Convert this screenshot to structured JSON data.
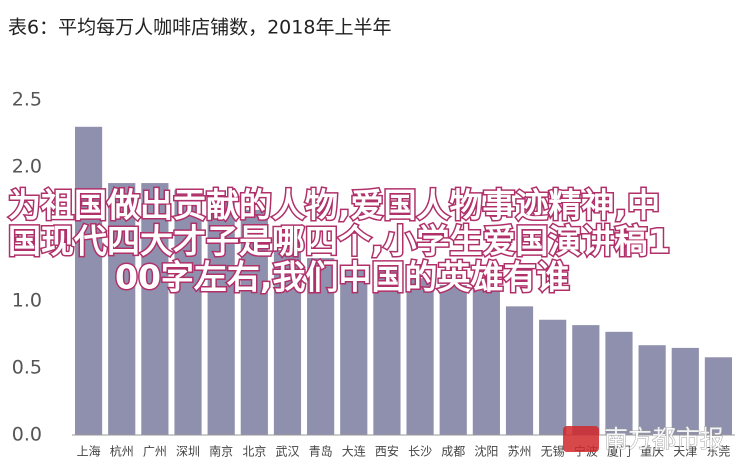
{
  "chart_data": {
    "type": "bar",
    "title": "表6：平均每万人咖啡店铺数，2018年上半年",
    "categories": [
      "上海",
      "杭州",
      "广州",
      "深圳",
      "南京",
      "北京",
      "武汉",
      "青岛",
      "大连",
      "西安",
      "长沙",
      "成都",
      "沈阳",
      "苏州",
      "无锡",
      "宁波",
      "厦门",
      "重庆",
      "天津",
      "东莞"
    ],
    "values": [
      2.3,
      1.88,
      1.88,
      1.83,
      1.75,
      1.68,
      1.38,
      1.32,
      1.27,
      1.22,
      1.17,
      1.12,
      1.1,
      0.96,
      0.86,
      0.82,
      0.77,
      0.67,
      0.65,
      0.58
    ],
    "color": "#8e90ad",
    "ylim": [
      0,
      2.5
    ],
    "yticks": [
      {
        "value": 0,
        "label": "0.0"
      },
      0.5,
      {
        "value": 1,
        "label": "1.0"
      },
      1.5,
      {
        "value": 2,
        "label": "2.0"
      },
      2.5
    ],
    "grid": false,
    "overlay": [
      "为祖国做出贡献的人物,爱国人物事迹精神,中",
      "国现代四大才子是哪四个,小学生爱国演讲稿1",
      "00字左右,我们中国的英雄有谁"
    ],
    "watermark": "南方都市报"
  }
}
